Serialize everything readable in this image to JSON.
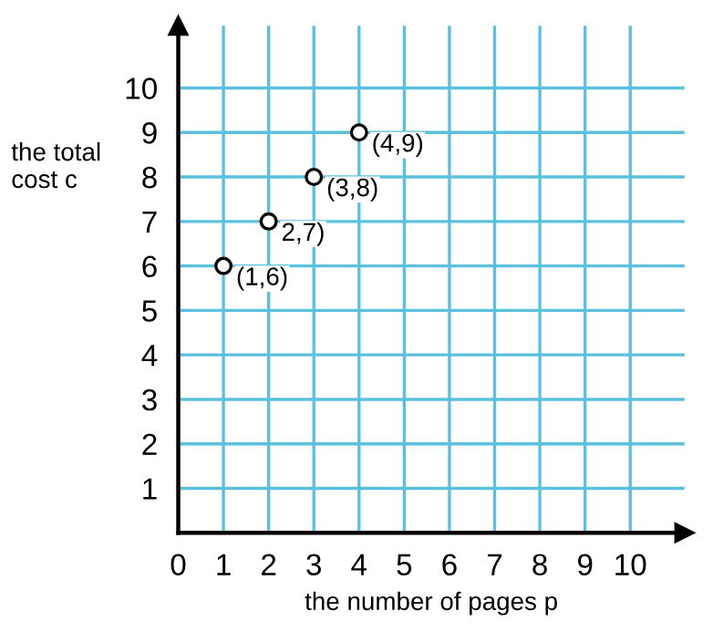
{
  "chart_data": {
    "type": "scatter",
    "xlabel": "the number of pages p",
    "ylabel": "the total\ncost c",
    "x": [
      1,
      2,
      3,
      4
    ],
    "values": [
      6,
      7,
      8,
      9
    ],
    "color": "#000000",
    "marker": "circle",
    "xlim": [
      0,
      11.2
    ],
    "ylim": [
      0,
      11.4
    ],
    "xticks": [
      0,
      1,
      2,
      3,
      4,
      5,
      6,
      7,
      8,
      9,
      10
    ],
    "yticks": [
      1,
      2,
      3,
      4,
      5,
      6,
      7,
      8,
      9,
      10
    ],
    "grid": true,
    "annotations": [
      {
        "text": "(1,6)",
        "x": 1,
        "y": 6
      },
      {
        "text": "2,7)",
        "x": 2,
        "y": 7
      },
      {
        "text": "(3,8)",
        "x": 3,
        "y": 8
      },
      {
        "text": "(4,9)",
        "x": 4,
        "y": 9
      }
    ]
  }
}
